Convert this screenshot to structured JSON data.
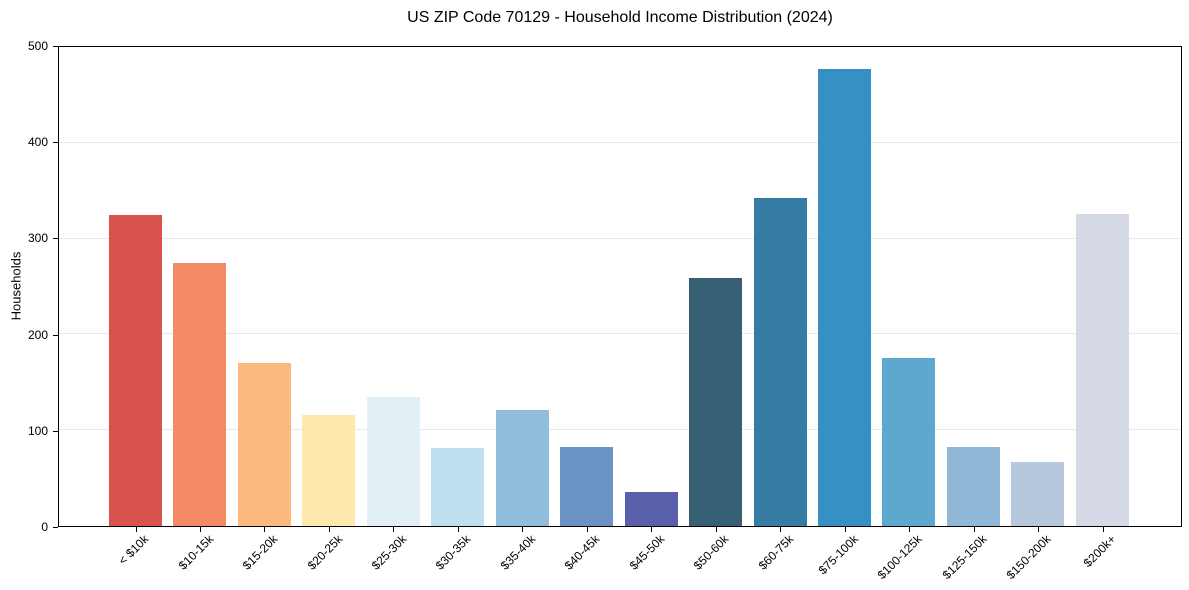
{
  "chart_data": {
    "type": "bar",
    "title": "US ZIP Code 70129 - Household Income Distribution (2024)",
    "xlabel": "",
    "ylabel": "Households",
    "categories": [
      "< $10k",
      "$10-15k",
      "$15-20k",
      "$20-25k",
      "$25-30k",
      "$30-35k",
      "$35-40k",
      "$40-45k",
      "$45-50k",
      "$50-60k",
      "$60-75k",
      "$75-100k",
      "$100-125k",
      "$125-150k",
      "$150-200k",
      "$200k+"
    ],
    "values": [
      325,
      275,
      170,
      116,
      135,
      81,
      121,
      82,
      36,
      259,
      342,
      477,
      175,
      83,
      67,
      326
    ],
    "bar_colors": [
      "#d9534e",
      "#f58a67",
      "#fbb97e",
      "#fde9ad",
      "#e2eff5",
      "#c0e0ef",
      "#92bedd",
      "#6b92c4",
      "#5a5fab",
      "#386074",
      "#357ca4",
      "#3590c4",
      "#5ea7cf",
      "#91b7d8",
      "#b6c8dd",
      "#d6d9e6"
    ],
    "ylim": [
      0,
      500
    ],
    "yticks": [
      0,
      100,
      200,
      300,
      400,
      500
    ],
    "legend": "none",
    "grid": "horizontal",
    "grid_color": "#e9e9e9",
    "axis_color": "#000000",
    "background": "#ffffff"
  }
}
